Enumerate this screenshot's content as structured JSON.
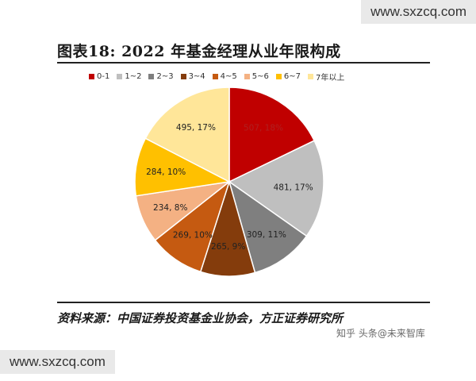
{
  "title": "图表18:  2022 年基金经理从业年限构成",
  "source": "资料来源：中国证券投资基金业协会，方正证券研究所",
  "watermark_top": "www.sxzcq.com",
  "watermark_bottom": "www.sxzcq.com",
  "watermark_overlay": "知乎 头条@未来智库",
  "chart_data": {
    "type": "pie",
    "title": "",
    "legend_position": "top",
    "categories": [
      "0-1",
      "1~2",
      "2~3",
      "3~4",
      "4~5",
      "5~6",
      "6~7",
      "7年以上"
    ],
    "values": [
      507,
      481,
      309,
      265,
      269,
      234,
      284,
      495
    ],
    "percents": [
      18,
      17,
      11,
      9,
      10,
      8,
      10,
      17
    ],
    "labels": [
      "507, 18%",
      "481, 17%",
      "309, 11%",
      "265, 9%",
      "269, 10%",
      "234, 8%",
      "284, 10%",
      "495, 17%"
    ],
    "colors": [
      "#c00000",
      "#bfbfbf",
      "#7f7f7f",
      "#843c0c",
      "#c55a11",
      "#f4b183",
      "#ffc000",
      "#ffe699"
    ]
  }
}
